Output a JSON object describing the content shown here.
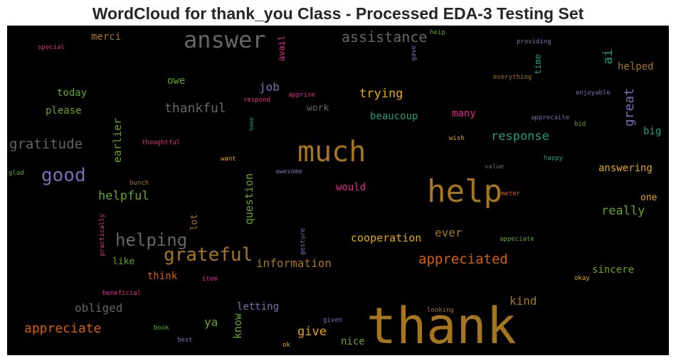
{
  "chart_data": {
    "type": "wordcloud",
    "title": "WordCloud for thank_you Class - Processed EDA-3 Testing Set",
    "colormap": "Dark2",
    "background": "#000000",
    "words": [
      {
        "text": "thank",
        "color": "#a6761d"
      },
      {
        "text": "much",
        "color": "#a6761d"
      },
      {
        "text": "help",
        "color": "#a6761d"
      },
      {
        "text": "answer",
        "color": "#666666"
      },
      {
        "text": "good",
        "color": "#7570b3"
      },
      {
        "text": "grateful",
        "color": "#a6761d"
      },
      {
        "text": "helping",
        "color": "#666666"
      },
      {
        "text": "assistance",
        "color": "#666666"
      },
      {
        "text": "gratitude",
        "color": "#666666"
      },
      {
        "text": "appreciated",
        "color": "#d95f02"
      },
      {
        "text": "appreciate",
        "color": "#d95f02"
      },
      {
        "text": "thankful",
        "color": "#666666"
      },
      {
        "text": "helpful",
        "color": "#66a61e"
      },
      {
        "text": "response",
        "color": "#1b9e77"
      },
      {
        "text": "information",
        "color": "#a6761d"
      },
      {
        "text": "obliged",
        "color": "#666666"
      },
      {
        "text": "really",
        "color": "#66a61e"
      },
      {
        "text": "trying",
        "color": "#e6ab02"
      },
      {
        "text": "cooperation",
        "color": "#e6ab02"
      },
      {
        "text": "kind",
        "color": "#a6761d"
      },
      {
        "text": "give",
        "color": "#e6ab02"
      },
      {
        "text": "ai",
        "color": "#1b9e77"
      },
      {
        "text": "great",
        "color": "#7570b3"
      },
      {
        "text": "question",
        "color": "#66a61e"
      },
      {
        "text": "earlier",
        "color": "#66a61e"
      },
      {
        "text": "job",
        "color": "#7570b3"
      },
      {
        "text": "ya",
        "color": "#66a61e"
      },
      {
        "text": "know",
        "color": "#66a61e"
      },
      {
        "text": "ever",
        "color": "#a6761d"
      },
      {
        "text": "nice",
        "color": "#66a61e"
      },
      {
        "text": "would",
        "color": "#e7298a"
      },
      {
        "text": "letting",
        "color": "#7570b3"
      },
      {
        "text": "sincere",
        "color": "#66a61e"
      },
      {
        "text": "answering",
        "color": "#e6ab02"
      },
      {
        "text": "think",
        "color": "#d95f02"
      },
      {
        "text": "beaucoup",
        "color": "#1b9e77"
      },
      {
        "text": "many",
        "color": "#e7298a"
      },
      {
        "text": "big",
        "color": "#1b9e77"
      },
      {
        "text": "helped",
        "color": "#a6761d"
      },
      {
        "text": "merci",
        "color": "#a6761d"
      },
      {
        "text": "please",
        "color": "#66a61e"
      },
      {
        "text": "today",
        "color": "#66a61e"
      },
      {
        "text": "owe",
        "color": "#66a61e"
      },
      {
        "text": "work",
        "color": "#666666"
      },
      {
        "text": "lot",
        "color": "#a6761d"
      },
      {
        "text": "like",
        "color": "#66a61e"
      },
      {
        "text": "avail",
        "color": "#e7298a"
      },
      {
        "text": "time",
        "color": "#1b9e77"
      },
      {
        "text": "one",
        "color": "#e6ab02"
      },
      {
        "text": "special",
        "color": "#e7298a"
      },
      {
        "text": "heip",
        "color": "#66a61e"
      },
      {
        "text": "gave",
        "color": "#7570b3"
      },
      {
        "text": "providing",
        "color": "#7570b3"
      },
      {
        "text": "everything",
        "color": "#a6761d"
      },
      {
        "text": "apprise",
        "color": "#e7298a"
      },
      {
        "text": "respond",
        "color": "#e7298a"
      },
      {
        "text": "enjoyable",
        "color": "#7570b3"
      },
      {
        "text": "apprecaite",
        "color": "#7570b3"
      },
      {
        "text": "bid",
        "color": "#66a61e"
      },
      {
        "text": "home",
        "color": "#1b9e77"
      },
      {
        "text": "thoughtful",
        "color": "#e7298a"
      },
      {
        "text": "wish",
        "color": "#e6ab02"
      },
      {
        "text": "want",
        "color": "#e6ab02"
      },
      {
        "text": "awesome",
        "color": "#7570b3"
      },
      {
        "text": "happy",
        "color": "#1b9e77"
      },
      {
        "text": "glad",
        "color": "#66a61e"
      },
      {
        "text": "value",
        "color": "#666666"
      },
      {
        "text": "bunch",
        "color": "#a6761d"
      },
      {
        "text": "meter",
        "color": "#d95f02"
      },
      {
        "text": "practically",
        "color": "#e7298a"
      },
      {
        "text": "gesture",
        "color": "#7570b3"
      },
      {
        "text": "appeciate",
        "color": "#66a61e"
      },
      {
        "text": "item",
        "color": "#e7298a"
      },
      {
        "text": "okay",
        "color": "#e6ab02"
      },
      {
        "text": "beneficial",
        "color": "#e7298a"
      },
      {
        "text": "looking",
        "color": "#a6761d"
      },
      {
        "text": "given",
        "color": "#7570b3"
      },
      {
        "text": "book",
        "color": "#66a61e"
      },
      {
        "text": "best",
        "color": "#7570b3"
      },
      {
        "text": "ok",
        "color": "#e6ab02"
      }
    ]
  }
}
